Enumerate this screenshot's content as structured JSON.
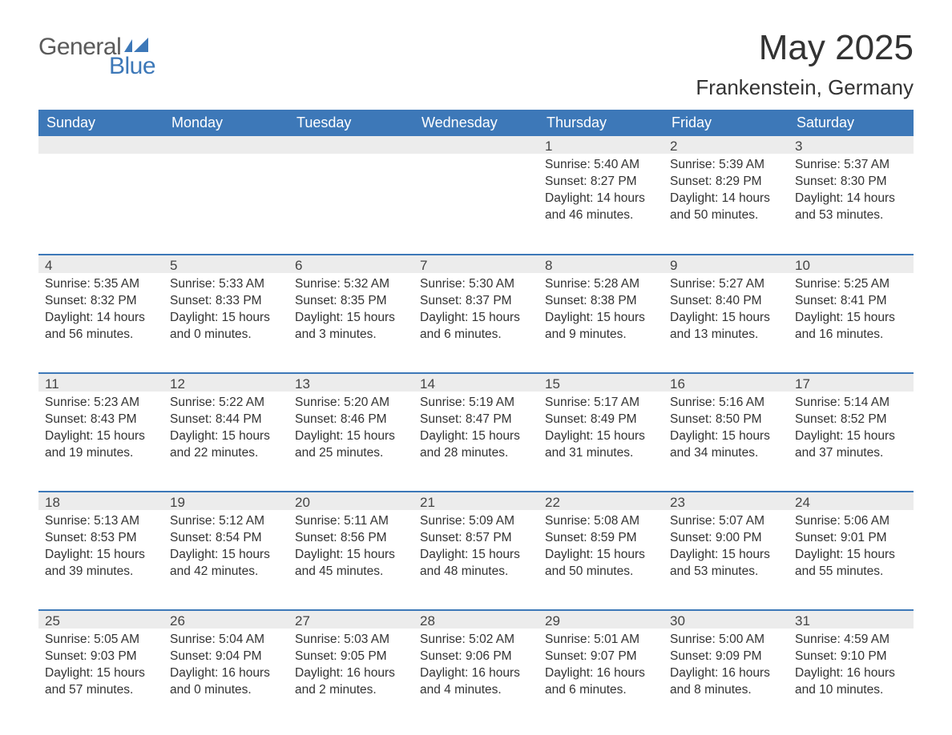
{
  "logo": {
    "word1": "General",
    "word2": "Blue"
  },
  "title": "May 2025",
  "location": "Frankenstein, Germany",
  "colors": {
    "header_blue": "#3d78b8",
    "daynum_bg": "#ececec",
    "text": "#333333",
    "logo_gray": "#5a5a5a",
    "logo_blue": "#3d78b8",
    "page_bg": "#ffffff"
  },
  "fonts": {
    "month_title_size": 44,
    "location_size": 26,
    "day_header_size": 18,
    "daynum_size": 17,
    "body_size": 15.5
  },
  "day_headers": [
    "Sunday",
    "Monday",
    "Tuesday",
    "Wednesday",
    "Thursday",
    "Friday",
    "Saturday"
  ],
  "weeks": [
    [
      {
        "num": "",
        "sunrise": "",
        "sunset": "",
        "daylight": ""
      },
      {
        "num": "",
        "sunrise": "",
        "sunset": "",
        "daylight": ""
      },
      {
        "num": "",
        "sunrise": "",
        "sunset": "",
        "daylight": ""
      },
      {
        "num": "",
        "sunrise": "",
        "sunset": "",
        "daylight": ""
      },
      {
        "num": "1",
        "sunrise": "Sunrise: 5:40 AM",
        "sunset": "Sunset: 8:27 PM",
        "daylight": "Daylight: 14 hours and 46 minutes."
      },
      {
        "num": "2",
        "sunrise": "Sunrise: 5:39 AM",
        "sunset": "Sunset: 8:29 PM",
        "daylight": "Daylight: 14 hours and 50 minutes."
      },
      {
        "num": "3",
        "sunrise": "Sunrise: 5:37 AM",
        "sunset": "Sunset: 8:30 PM",
        "daylight": "Daylight: 14 hours and 53 minutes."
      }
    ],
    [
      {
        "num": "4",
        "sunrise": "Sunrise: 5:35 AM",
        "sunset": "Sunset: 8:32 PM",
        "daylight": "Daylight: 14 hours and 56 minutes."
      },
      {
        "num": "5",
        "sunrise": "Sunrise: 5:33 AM",
        "sunset": "Sunset: 8:33 PM",
        "daylight": "Daylight: 15 hours and 0 minutes."
      },
      {
        "num": "6",
        "sunrise": "Sunrise: 5:32 AM",
        "sunset": "Sunset: 8:35 PM",
        "daylight": "Daylight: 15 hours and 3 minutes."
      },
      {
        "num": "7",
        "sunrise": "Sunrise: 5:30 AM",
        "sunset": "Sunset: 8:37 PM",
        "daylight": "Daylight: 15 hours and 6 minutes."
      },
      {
        "num": "8",
        "sunrise": "Sunrise: 5:28 AM",
        "sunset": "Sunset: 8:38 PM",
        "daylight": "Daylight: 15 hours and 9 minutes."
      },
      {
        "num": "9",
        "sunrise": "Sunrise: 5:27 AM",
        "sunset": "Sunset: 8:40 PM",
        "daylight": "Daylight: 15 hours and 13 minutes."
      },
      {
        "num": "10",
        "sunrise": "Sunrise: 5:25 AM",
        "sunset": "Sunset: 8:41 PM",
        "daylight": "Daylight: 15 hours and 16 minutes."
      }
    ],
    [
      {
        "num": "11",
        "sunrise": "Sunrise: 5:23 AM",
        "sunset": "Sunset: 8:43 PM",
        "daylight": "Daylight: 15 hours and 19 minutes."
      },
      {
        "num": "12",
        "sunrise": "Sunrise: 5:22 AM",
        "sunset": "Sunset: 8:44 PM",
        "daylight": "Daylight: 15 hours and 22 minutes."
      },
      {
        "num": "13",
        "sunrise": "Sunrise: 5:20 AM",
        "sunset": "Sunset: 8:46 PM",
        "daylight": "Daylight: 15 hours and 25 minutes."
      },
      {
        "num": "14",
        "sunrise": "Sunrise: 5:19 AM",
        "sunset": "Sunset: 8:47 PM",
        "daylight": "Daylight: 15 hours and 28 minutes."
      },
      {
        "num": "15",
        "sunrise": "Sunrise: 5:17 AM",
        "sunset": "Sunset: 8:49 PM",
        "daylight": "Daylight: 15 hours and 31 minutes."
      },
      {
        "num": "16",
        "sunrise": "Sunrise: 5:16 AM",
        "sunset": "Sunset: 8:50 PM",
        "daylight": "Daylight: 15 hours and 34 minutes."
      },
      {
        "num": "17",
        "sunrise": "Sunrise: 5:14 AM",
        "sunset": "Sunset: 8:52 PM",
        "daylight": "Daylight: 15 hours and 37 minutes."
      }
    ],
    [
      {
        "num": "18",
        "sunrise": "Sunrise: 5:13 AM",
        "sunset": "Sunset: 8:53 PM",
        "daylight": "Daylight: 15 hours and 39 minutes."
      },
      {
        "num": "19",
        "sunrise": "Sunrise: 5:12 AM",
        "sunset": "Sunset: 8:54 PM",
        "daylight": "Daylight: 15 hours and 42 minutes."
      },
      {
        "num": "20",
        "sunrise": "Sunrise: 5:11 AM",
        "sunset": "Sunset: 8:56 PM",
        "daylight": "Daylight: 15 hours and 45 minutes."
      },
      {
        "num": "21",
        "sunrise": "Sunrise: 5:09 AM",
        "sunset": "Sunset: 8:57 PM",
        "daylight": "Daylight: 15 hours and 48 minutes."
      },
      {
        "num": "22",
        "sunrise": "Sunrise: 5:08 AM",
        "sunset": "Sunset: 8:59 PM",
        "daylight": "Daylight: 15 hours and 50 minutes."
      },
      {
        "num": "23",
        "sunrise": "Sunrise: 5:07 AM",
        "sunset": "Sunset: 9:00 PM",
        "daylight": "Daylight: 15 hours and 53 minutes."
      },
      {
        "num": "24",
        "sunrise": "Sunrise: 5:06 AM",
        "sunset": "Sunset: 9:01 PM",
        "daylight": "Daylight: 15 hours and 55 minutes."
      }
    ],
    [
      {
        "num": "25",
        "sunrise": "Sunrise: 5:05 AM",
        "sunset": "Sunset: 9:03 PM",
        "daylight": "Daylight: 15 hours and 57 minutes."
      },
      {
        "num": "26",
        "sunrise": "Sunrise: 5:04 AM",
        "sunset": "Sunset: 9:04 PM",
        "daylight": "Daylight: 16 hours and 0 minutes."
      },
      {
        "num": "27",
        "sunrise": "Sunrise: 5:03 AM",
        "sunset": "Sunset: 9:05 PM",
        "daylight": "Daylight: 16 hours and 2 minutes."
      },
      {
        "num": "28",
        "sunrise": "Sunrise: 5:02 AM",
        "sunset": "Sunset: 9:06 PM",
        "daylight": "Daylight: 16 hours and 4 minutes."
      },
      {
        "num": "29",
        "sunrise": "Sunrise: 5:01 AM",
        "sunset": "Sunset: 9:07 PM",
        "daylight": "Daylight: 16 hours and 6 minutes."
      },
      {
        "num": "30",
        "sunrise": "Sunrise: 5:00 AM",
        "sunset": "Sunset: 9:09 PM",
        "daylight": "Daylight: 16 hours and 8 minutes."
      },
      {
        "num": "31",
        "sunrise": "Sunrise: 4:59 AM",
        "sunset": "Sunset: 9:10 PM",
        "daylight": "Daylight: 16 hours and 10 minutes."
      }
    ]
  ]
}
